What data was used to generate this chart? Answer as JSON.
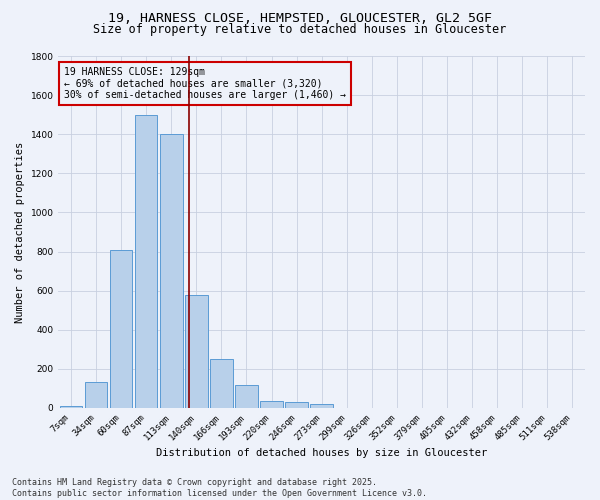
{
  "title_line1": "19, HARNESS CLOSE, HEMPSTED, GLOUCESTER, GL2 5GF",
  "title_line2": "Size of property relative to detached houses in Gloucester",
  "xlabel": "Distribution of detached houses by size in Gloucester",
  "ylabel": "Number of detached properties",
  "categories": [
    "7sqm",
    "34sqm",
    "60sqm",
    "87sqm",
    "113sqm",
    "140sqm",
    "166sqm",
    "193sqm",
    "220sqm",
    "246sqm",
    "273sqm",
    "299sqm",
    "326sqm",
    "352sqm",
    "379sqm",
    "405sqm",
    "432sqm",
    "458sqm",
    "485sqm",
    "511sqm",
    "538sqm"
  ],
  "values": [
    10,
    130,
    810,
    1500,
    1400,
    575,
    250,
    115,
    35,
    28,
    20,
    0,
    0,
    0,
    0,
    0,
    0,
    0,
    0,
    0,
    0
  ],
  "bar_color": "#b8d0ea",
  "bar_edge_color": "#5b9bd5",
  "grid_color": "#c8d0e0",
  "bg_color": "#eef2fa",
  "vline_color": "#8b0000",
  "annotation_text": "19 HARNESS CLOSE: 129sqm\n← 69% of detached houses are smaller (3,320)\n30% of semi-detached houses are larger (1,460) →",
  "annotation_box_color": "#cc0000",
  "ylim": [
    0,
    1800
  ],
  "yticks": [
    0,
    200,
    400,
    600,
    800,
    1000,
    1200,
    1400,
    1600,
    1800
  ],
  "footer_line1": "Contains HM Land Registry data © Crown copyright and database right 2025.",
  "footer_line2": "Contains public sector information licensed under the Open Government Licence v3.0.",
  "title_fontsize": 9.5,
  "subtitle_fontsize": 8.5,
  "axis_label_fontsize": 7.5,
  "tick_fontsize": 6.5,
  "annotation_fontsize": 7,
  "footer_fontsize": 6
}
